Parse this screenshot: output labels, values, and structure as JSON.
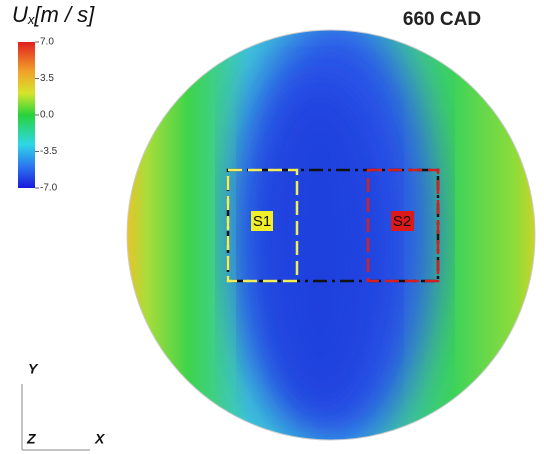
{
  "title": "660 CAD",
  "colorbar": {
    "symbol": "U",
    "subscript": "x",
    "unit": "[m / s]",
    "ticks": [
      {
        "value": 7,
        "label": "7.0"
      },
      {
        "value": 3.5,
        "label": "3.5"
      },
      {
        "value": 0,
        "label": "0.0"
      },
      {
        "value": -3.5,
        "label": "-3.5"
      },
      {
        "value": -7,
        "label": "-7.0"
      }
    ]
  },
  "regions": [
    {
      "label": "S1"
    },
    {
      "label": "S2"
    }
  ],
  "axes": {
    "y": "Y",
    "z": "Z",
    "x": "X"
  }
}
